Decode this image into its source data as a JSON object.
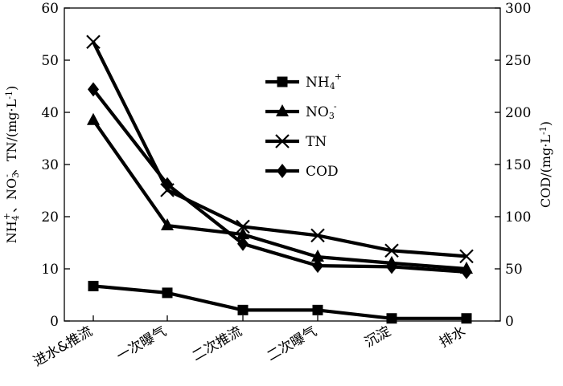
{
  "chart_data": {
    "type": "line",
    "categories": [
      "进水&推流",
      "一次曝气",
      "二次推流",
      "二次曝气",
      "沉淀",
      "排水"
    ],
    "ylabel_left": {
      "main": "NH",
      "sub1": "4",
      "sup1": "+",
      "mid": "、NO",
      "sub2": "3",
      "sup2": "-",
      "rest": "、TN/(mg·L",
      "exp": "-1",
      "close": ")"
    },
    "ylabel_right": {
      "main": "COD/(mg·L",
      "exp": "-1",
      "close": ")"
    },
    "ylim_left": [
      0,
      60
    ],
    "ylim_right": [
      0,
      300
    ],
    "yticks_left": [
      "0",
      "10",
      "20",
      "30",
      "40",
      "50",
      "60"
    ],
    "yticks_right": [
      "0",
      "50",
      "100",
      "150",
      "200",
      "250",
      "300"
    ],
    "grid": false,
    "legend_position": "center",
    "series": [
      {
        "key": "nh4",
        "legend": {
          "main": "NH",
          "sub": "4",
          "sup": "+"
        },
        "marker": "square",
        "axis": "left",
        "values": [
          6.7,
          5.4,
          2.1,
          2.1,
          0.5,
          0.5
        ]
      },
      {
        "key": "no3",
        "legend": {
          "main": "NO",
          "sub": "3",
          "sup": "-"
        },
        "marker": "triangle",
        "axis": "left",
        "values": [
          38.5,
          18.3,
          16.6,
          12.3,
          11.1,
          10.0
        ]
      },
      {
        "key": "tn",
        "legend": {
          "main": "TN",
          "sub": "",
          "sup": ""
        },
        "marker": "x",
        "axis": "left",
        "values": [
          53.5,
          25.1,
          18.1,
          16.4,
          13.5,
          12.4
        ]
      },
      {
        "key": "cod",
        "legend": {
          "main": "COD",
          "sub": "",
          "sup": ""
        },
        "marker": "diamond",
        "axis": "right",
        "values": [
          222,
          131,
          74,
          53,
          52,
          47
        ]
      }
    ],
    "color": "#000000"
  }
}
